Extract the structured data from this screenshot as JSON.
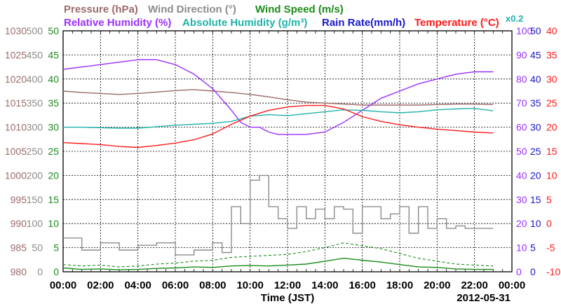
{
  "chart_data": {
    "type": "line",
    "xlabel": "Time (JST)",
    "date": "2012-05-31",
    "x_ticks": [
      "00:00",
      "02:00",
      "04:00",
      "06:00",
      "08:00",
      "10:00",
      "12:00",
      "14:00",
      "16:00",
      "18:00",
      "20:00",
      "22:00",
      "00:00"
    ],
    "xlim": [
      0,
      24
    ],
    "grid": true,
    "legend": {
      "row1": [
        {
          "label": "Pressure (hPa)",
          "color": "#9c6a6a"
        },
        {
          "label": "Wind Direction (°)",
          "color": "#8c8c8c"
        },
        {
          "label": "Wind Speed (m/s)",
          "color": "#1a8c1a"
        }
      ],
      "row2": [
        {
          "label": "Relative Humidity (%)",
          "color": "#9b30ff"
        },
        {
          "label": "Absolute Humidity (g/m³)",
          "color": "#20b2aa"
        },
        {
          "label": "Rain Rate(mm/h)",
          "color": "#1a1acd"
        },
        {
          "label": "Temperature (°C)",
          "color": "#ff1a1a"
        }
      ],
      "rain_scale_note": "x0.2"
    },
    "axes": {
      "pressure": {
        "color": "#9c6a6a",
        "ylim": [
          980,
          1030
        ],
        "ticks": [
          "1030",
          "1025",
          "1020",
          "1015",
          "1010",
          "1005",
          "1000",
          "995",
          "990",
          "985",
          "980"
        ]
      },
      "wind_direction": {
        "color": "#8c8c8c",
        "ylim": [
          0,
          500
        ],
        "ticks": [
          "500",
          "450",
          "400",
          "350",
          "300",
          "250",
          "200",
          "150",
          "100",
          "50",
          "0"
        ]
      },
      "wind_speed": {
        "color": "#1a8c1a",
        "ylim": [
          0,
          50
        ],
        "ticks": [
          "50",
          "45",
          "40",
          "35",
          "30",
          "25",
          "20",
          "15",
          "10",
          "5",
          "0"
        ]
      },
      "relative_humidity": {
        "color": "#9b30ff",
        "ylim": [
          0,
          100
        ],
        "ticks": [
          "100",
          "90",
          "80",
          "70",
          "60",
          "50",
          "40",
          "30",
          "20",
          "10",
          "0"
        ]
      },
      "rain_rate": {
        "color": "#1a1acd",
        "ylim": [
          0,
          50
        ],
        "ticks": [
          "50",
          "45",
          "40",
          "35",
          "30",
          "25",
          "20",
          "15",
          "10",
          "5",
          "0"
        ]
      },
      "temperature": {
        "color": "#ff1a1a",
        "ylim": [
          -10,
          40
        ],
        "ticks": [
          "40",
          "35",
          "30",
          "25",
          "20",
          "15",
          "10",
          "5",
          "0",
          "-5",
          "-10"
        ]
      }
    },
    "series": [
      {
        "name": "Pressure (hPa)",
        "axis": "pressure",
        "color": "#9c6a6a",
        "style": "solid",
        "x": [
          0,
          1,
          2,
          3,
          4,
          5,
          6,
          7,
          8,
          9,
          10,
          11,
          12,
          13,
          14,
          15,
          16,
          17,
          18,
          19,
          20,
          21,
          22,
          23
        ],
        "y": [
          1017.5,
          1017.2,
          1017.0,
          1016.8,
          1017.0,
          1017.3,
          1017.6,
          1017.8,
          1017.5,
          1017.2,
          1016.8,
          1016.3,
          1015.7,
          1015.2,
          1015.0,
          1014.8,
          1014.6,
          1014.6,
          1014.6,
          1014.6,
          1014.7,
          1014.8,
          1014.8,
          1014.7
        ]
      },
      {
        "name": "Relative Humidity (%)",
        "axis": "relative_humidity",
        "color": "#9b30ff",
        "style": "solid",
        "x": [
          0,
          1,
          2,
          3,
          4,
          5,
          6,
          7,
          8,
          9,
          9.5,
          10,
          10.5,
          11,
          11.5,
          12,
          13,
          14,
          15,
          16,
          17,
          18,
          19,
          20,
          21,
          22,
          23
        ],
        "y": [
          84,
          85,
          86,
          87,
          88,
          88,
          86,
          82,
          76,
          67,
          62,
          60,
          60,
          58,
          57,
          57,
          57,
          58,
          62,
          67,
          72,
          75,
          78,
          80,
          82,
          83,
          83
        ]
      },
      {
        "name": "Absolute Humidity (g/m³)",
        "axis": "pressure",
        "color": "#20b2aa",
        "style": "solid",
        "x": [
          0,
          1,
          2,
          3,
          4,
          5,
          6,
          7,
          8,
          9,
          10,
          11,
          12,
          13,
          14,
          15,
          16,
          17,
          18,
          19,
          20,
          21,
          22,
          23
        ],
        "y": [
          1010.0,
          1010.0,
          1009.9,
          1009.8,
          1009.8,
          1010.1,
          1010.4,
          1010.6,
          1010.8,
          1011.2,
          1012.3,
          1012.6,
          1012.4,
          1012.8,
          1013.2,
          1013.6,
          1013.5,
          1013.2,
          1013.0,
          1013.2,
          1013.6,
          1013.8,
          1013.9,
          1013.4
        ]
      },
      {
        "name": "Temperature (°C)",
        "axis": "temperature",
        "color": "#ff1a1a",
        "style": "solid",
        "x": [
          0,
          1,
          2,
          3,
          4,
          5,
          6,
          7,
          8,
          9,
          10,
          11,
          12,
          13,
          14,
          15,
          16,
          17,
          18,
          19,
          20,
          21,
          22,
          23
        ],
        "y": [
          16.8,
          16.6,
          16.4,
          16.0,
          15.8,
          16.2,
          16.7,
          17.4,
          18.6,
          20.6,
          22.3,
          23.5,
          24.2,
          24.5,
          24.5,
          23.8,
          22.2,
          21.2,
          20.5,
          20.0,
          19.6,
          19.3,
          19.0,
          18.8
        ]
      },
      {
        "name": "Wind Direction (°)",
        "axis": "wind_direction",
        "color": "#8c8c8c",
        "style": "stepped",
        "x": [
          0,
          1,
          2,
          3,
          4,
          5,
          6,
          7,
          8,
          8.5,
          9,
          9.5,
          10,
          10.5,
          11,
          11.5,
          12,
          12.5,
          13,
          13.5,
          14,
          14.5,
          15,
          15.5,
          16,
          16.5,
          17,
          17.5,
          18,
          18.5,
          19,
          19.5,
          20,
          20.5,
          21,
          21.5,
          22,
          22.5,
          23
        ],
        "y": [
          70,
          45,
          60,
          45,
          55,
          60,
          35,
          45,
          60,
          40,
          135,
          100,
          190,
          200,
          135,
          110,
          90,
          135,
          110,
          130,
          110,
          135,
          130,
          80,
          135,
          135,
          110,
          120,
          135,
          80,
          135,
          90,
          110,
          90,
          95,
          90,
          90,
          90,
          90
        ]
      },
      {
        "name": "Wind Speed (m/s)",
        "axis": "wind_speed",
        "color": "#1a8c1a",
        "style": "solid",
        "x": [
          0,
          1,
          2,
          3,
          4,
          5,
          6,
          7,
          8,
          9,
          10,
          11,
          12,
          13,
          14,
          15,
          16,
          17,
          18,
          19,
          20,
          21,
          22,
          23
        ],
        "y": [
          0.8,
          0.5,
          0.6,
          0.4,
          0.5,
          0.7,
          0.8,
          1.0,
          0.9,
          1.2,
          1.3,
          1.2,
          1.4,
          1.6,
          2.2,
          2.8,
          2.4,
          2.0,
          1.5,
          1.0,
          0.9,
          0.6,
          0.5,
          0.5
        ]
      },
      {
        "name": "Wind Speed gust (m/s)",
        "axis": "wind_speed",
        "color": "#1a8c1a",
        "style": "dashed",
        "x": [
          0,
          1,
          2,
          3,
          4,
          5,
          6,
          7,
          8,
          9,
          10,
          11,
          12,
          13,
          14,
          15,
          16,
          17,
          18,
          19,
          20,
          21,
          22,
          23
        ],
        "y": [
          1.5,
          1.2,
          1.4,
          1.0,
          1.2,
          1.6,
          1.8,
          2.2,
          2.4,
          3.0,
          3.2,
          3.4,
          3.6,
          4.2,
          5.0,
          6.0,
          5.4,
          4.8,
          3.8,
          2.8,
          2.2,
          1.6,
          1.4,
          1.2
        ]
      }
    ]
  }
}
